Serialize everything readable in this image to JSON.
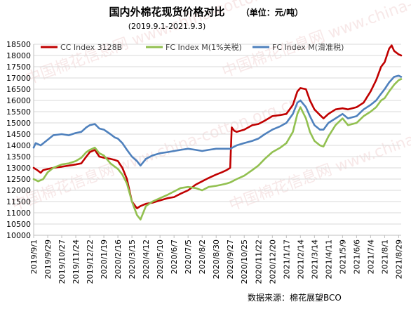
{
  "chart_data": {
    "type": "line",
    "title": "国内外棉花现货价格对比",
    "unit": "（单位：元/吨）",
    "subtitle": "(2019.9.1-2021.9.3)",
    "source": "数据来源：棉花展望BCO",
    "watermark": "中国棉花信息网 www.china-cotton.org.cn",
    "ylim": [
      10000,
      18500
    ],
    "yticks": [
      10000,
      10500,
      11000,
      11500,
      12000,
      12500,
      13000,
      13500,
      14000,
      14500,
      15000,
      15500,
      16000,
      16500,
      17000,
      17500,
      18000,
      18500
    ],
    "x_tick_labels": [
      "2019/9/1",
      "2019/9/29",
      "2019/10/27",
      "2019/11/24",
      "2019/12/22",
      "2020/1/19",
      "2020/2/16",
      "2020/3/15",
      "2020/4/12",
      "2020/5/10",
      "2020/6/7",
      "2020/7/5",
      "2020/8/2",
      "2020/8/30",
      "2020/9/27",
      "2020/10/25",
      "2020/11/22",
      "2020/12/20",
      "2021/1/17",
      "2021/2/14",
      "2021/3/14",
      "2021/4/11",
      "2021/5/9",
      "2021/6/6",
      "2021/7/4",
      "2021/8/1",
      "2021/8/29"
    ],
    "x_range": [
      "2019/9/1",
      "2021/9/3"
    ],
    "series": [
      {
        "name": "CC Index 3128B",
        "color": "#c00000",
        "points": [
          [
            "2019/9/1",
            13000
          ],
          [
            "2019/9/8",
            12900
          ],
          [
            "2019/9/15",
            12780
          ],
          [
            "2019/9/20",
            12900
          ],
          [
            "2019/9/29",
            12950
          ],
          [
            "2019/10/10",
            13000
          ],
          [
            "2019/10/27",
            13050
          ],
          [
            "2019/11/10",
            13100
          ],
          [
            "2019/11/24",
            13150
          ],
          [
            "2019/12/5",
            13200
          ],
          [
            "2019/12/15",
            13500
          ],
          [
            "2019/12/22",
            13700
          ],
          [
            "2020/1/1",
            13800
          ],
          [
            "2020/1/10",
            13500
          ],
          [
            "2020/1/19",
            13450
          ],
          [
            "2020/2/1",
            13400
          ],
          [
            "2020/2/10",
            13350
          ],
          [
            "2020/2/16",
            13300
          ],
          [
            "2020/2/25",
            13000
          ],
          [
            "2020/3/5",
            12500
          ],
          [
            "2020/3/10",
            12000
          ],
          [
            "2020/3/15",
            11500
          ],
          [
            "2020/3/25",
            11200
          ],
          [
            "2020/4/1",
            11300
          ],
          [
            "2020/4/12",
            11400
          ],
          [
            "2020/4/25",
            11450
          ],
          [
            "2020/5/10",
            11550
          ],
          [
            "2020/5/25",
            11650
          ],
          [
            "2020/6/7",
            11700
          ],
          [
            "2020/6/20",
            11850
          ],
          [
            "2020/7/5",
            12000
          ],
          [
            "2020/7/20",
            12250
          ],
          [
            "2020/8/2",
            12400
          ],
          [
            "2020/8/15",
            12550
          ],
          [
            "2020/8/30",
            12700
          ],
          [
            "2020/9/10",
            12800
          ],
          [
            "2020/9/20",
            12900
          ],
          [
            "2020/9/27",
            13000
          ],
          [
            "2020/9/30",
            14800
          ],
          [
            "2020/10/5",
            14650
          ],
          [
            "2020/10/10",
            14600
          ],
          [
            "2020/10/25",
            14700
          ],
          [
            "2020/11/10",
            14900
          ],
          [
            "2020/11/22",
            14950
          ],
          [
            "2020/12/5",
            15100
          ],
          [
            "2020/12/20",
            15300
          ],
          [
            "2021/1/5",
            15350
          ],
          [
            "2021/1/17",
            15400
          ],
          [
            "2021/1/30",
            15800
          ],
          [
            "2021/2/8",
            16400
          ],
          [
            "2021/2/14",
            16550
          ],
          [
            "2021/2/25",
            16500
          ],
          [
            "2021/3/5",
            16000
          ],
          [
            "2021/3/14",
            15600
          ],
          [
            "2021/3/25",
            15350
          ],
          [
            "2021/4/1",
            15200
          ],
          [
            "2021/4/11",
            15400
          ],
          [
            "2021/4/25",
            15600
          ],
          [
            "2021/5/9",
            15650
          ],
          [
            "2021/5/20",
            15600
          ],
          [
            "2021/6/6",
            15700
          ],
          [
            "2021/6/20",
            15900
          ],
          [
            "2021/7/4",
            16400
          ],
          [
            "2021/7/15",
            16900
          ],
          [
            "2021/7/25",
            17500
          ],
          [
            "2021/8/1",
            17700
          ],
          [
            "2021/8/10",
            18300
          ],
          [
            "2021/8/15",
            18450
          ],
          [
            "2021/8/20",
            18200
          ],
          [
            "2021/8/29",
            18050
          ],
          [
            "2021/9/3",
            18000
          ]
        ]
      },
      {
        "name": "FC Index M(1%关税)",
        "color": "#92c050",
        "points": [
          [
            "2019/9/1",
            12500
          ],
          [
            "2019/9/10",
            12400
          ],
          [
            "2019/9/20",
            12500
          ],
          [
            "2019/9/29",
            12800
          ],
          [
            "2019/10/10",
            13000
          ],
          [
            "2019/10/27",
            13150
          ],
          [
            "2019/11/10",
            13200
          ],
          [
            "2019/11/24",
            13300
          ],
          [
            "2019/12/5",
            13450
          ],
          [
            "2019/12/15",
            13700
          ],
          [
            "2019/12/22",
            13800
          ],
          [
            "2020/1/1",
            13900
          ],
          [
            "2020/1/10",
            13650
          ],
          [
            "2020/1/19",
            13550
          ],
          [
            "2020/2/1",
            13200
          ],
          [
            "2020/2/10",
            13050
          ],
          [
            "2020/2/16",
            12950
          ],
          [
            "2020/2/25",
            12700
          ],
          [
            "2020/3/5",
            12300
          ],
          [
            "2020/3/15",
            11500
          ],
          [
            "2020/3/25",
            10900
          ],
          [
            "2020/4/1",
            10700
          ],
          [
            "2020/4/12",
            11300
          ],
          [
            "2020/4/25",
            11500
          ],
          [
            "2020/5/10",
            11650
          ],
          [
            "2020/5/25",
            11800
          ],
          [
            "2020/6/7",
            11950
          ],
          [
            "2020/6/20",
            12100
          ],
          [
            "2020/7/5",
            12150
          ],
          [
            "2020/7/20",
            12100
          ],
          [
            "2020/8/2",
            12000
          ],
          [
            "2020/8/15",
            12150
          ],
          [
            "2020/8/30",
            12200
          ],
          [
            "2020/9/10",
            12250
          ],
          [
            "2020/9/20",
            12300
          ],
          [
            "2020/9/27",
            12350
          ],
          [
            "2020/10/10",
            12500
          ],
          [
            "2020/10/25",
            12650
          ],
          [
            "2020/11/10",
            12900
          ],
          [
            "2020/11/22",
            13100
          ],
          [
            "2020/12/5",
            13400
          ],
          [
            "2020/12/20",
            13700
          ],
          [
            "2021/1/5",
            13900
          ],
          [
            "2021/1/17",
            14100
          ],
          [
            "2021/1/30",
            14600
          ],
          [
            "2021/2/8",
            15400
          ],
          [
            "2021/2/14",
            15700
          ],
          [
            "2021/2/25",
            15200
          ],
          [
            "2021/3/5",
            14600
          ],
          [
            "2021/3/14",
            14200
          ],
          [
            "2021/3/25",
            14000
          ],
          [
            "2021/4/1",
            13950
          ],
          [
            "2021/4/11",
            14400
          ],
          [
            "2021/4/25",
            14900
          ],
          [
            "2021/5/9",
            15200
          ],
          [
            "2021/5/20",
            14900
          ],
          [
            "2021/6/6",
            15000
          ],
          [
            "2021/6/20",
            15300
          ],
          [
            "2021/7/4",
            15500
          ],
          [
            "2021/7/15",
            15700
          ],
          [
            "2021/7/25",
            16000
          ],
          [
            "2021/8/1",
            16100
          ],
          [
            "2021/8/10",
            16400
          ],
          [
            "2021/8/20",
            16700
          ],
          [
            "2021/8/29",
            16900
          ],
          [
            "2021/9/3",
            16950
          ]
        ]
      },
      {
        "name": "FC Index M(滑准税)",
        "color": "#4f81bd",
        "points": [
          [
            "2019/9/1",
            13900
          ],
          [
            "2019/9/5",
            14100
          ],
          [
            "2019/9/15",
            14000
          ],
          [
            "2019/9/29",
            14250
          ],
          [
            "2019/10/10",
            14450
          ],
          [
            "2019/10/27",
            14500
          ],
          [
            "2019/11/10",
            14450
          ],
          [
            "2019/11/24",
            14550
          ],
          [
            "2019/12/5",
            14600
          ],
          [
            "2019/12/15",
            14800
          ],
          [
            "2019/12/22",
            14900
          ],
          [
            "2020/1/1",
            14950
          ],
          [
            "2020/1/10",
            14750
          ],
          [
            "2020/1/19",
            14700
          ],
          [
            "2020/2/1",
            14500
          ],
          [
            "2020/2/10",
            14350
          ],
          [
            "2020/2/16",
            14300
          ],
          [
            "2020/2/25",
            14100
          ],
          [
            "2020/3/5",
            13800
          ],
          [
            "2020/3/15",
            13500
          ],
          [
            "2020/3/25",
            13300
          ],
          [
            "2020/4/1",
            13100
          ],
          [
            "2020/4/12",
            13400
          ],
          [
            "2020/4/25",
            13550
          ],
          [
            "2020/5/10",
            13650
          ],
          [
            "2020/5/25",
            13700
          ],
          [
            "2020/6/7",
            13750
          ],
          [
            "2020/6/20",
            13800
          ],
          [
            "2020/7/5",
            13850
          ],
          [
            "2020/7/20",
            13800
          ],
          [
            "2020/8/2",
            13750
          ],
          [
            "2020/8/15",
            13800
          ],
          [
            "2020/8/30",
            13850
          ],
          [
            "2020/9/10",
            13850
          ],
          [
            "2020/9/20",
            13850
          ],
          [
            "2020/9/27",
            13850
          ],
          [
            "2020/10/10",
            14000
          ],
          [
            "2020/10/25",
            14100
          ],
          [
            "2020/11/10",
            14200
          ],
          [
            "2020/11/22",
            14300
          ],
          [
            "2020/12/5",
            14500
          ],
          [
            "2020/12/20",
            14700
          ],
          [
            "2021/1/5",
            14850
          ],
          [
            "2021/1/17",
            15000
          ],
          [
            "2021/1/30",
            15400
          ],
          [
            "2021/2/8",
            15900
          ],
          [
            "2021/2/14",
            16000
          ],
          [
            "2021/2/25",
            15700
          ],
          [
            "2021/3/5",
            15300
          ],
          [
            "2021/3/14",
            14900
          ],
          [
            "2021/3/25",
            14700
          ],
          [
            "2021/4/1",
            14700
          ],
          [
            "2021/4/11",
            15000
          ],
          [
            "2021/4/25",
            15200
          ],
          [
            "2021/5/9",
            15400
          ],
          [
            "2021/5/20",
            15200
          ],
          [
            "2021/6/6",
            15300
          ],
          [
            "2021/6/20",
            15600
          ],
          [
            "2021/7/4",
            15800
          ],
          [
            "2021/7/15",
            16000
          ],
          [
            "2021/7/25",
            16300
          ],
          [
            "2021/8/1",
            16500
          ],
          [
            "2021/8/10",
            16800
          ],
          [
            "2021/8/20",
            17050
          ],
          [
            "2021/8/29",
            17100
          ],
          [
            "2021/9/3",
            17050
          ]
        ]
      }
    ],
    "legend_position": "top",
    "grid": "horizontal"
  }
}
